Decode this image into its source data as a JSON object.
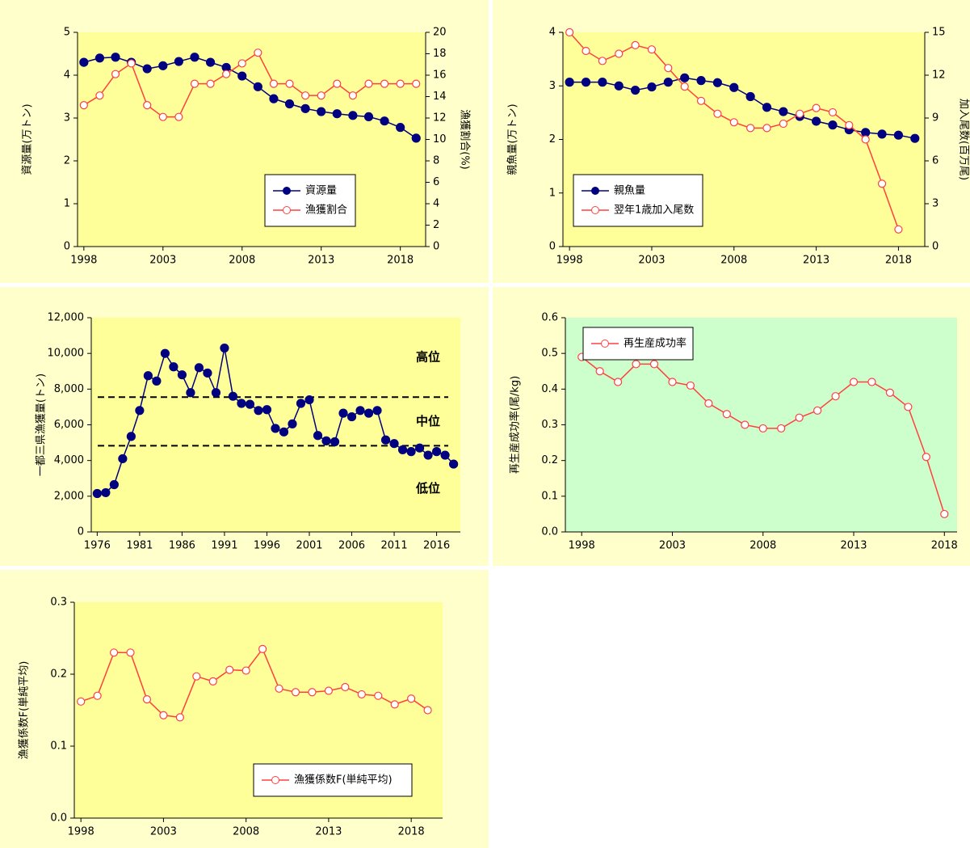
{
  "chart_data": [
    {
      "type": "line",
      "x": [
        1998,
        1999,
        2000,
        2001,
        2002,
        2003,
        2004,
        2005,
        2006,
        2007,
        2008,
        2009,
        2010,
        2011,
        2012,
        2013,
        2014,
        2015,
        2016,
        2017,
        2018,
        2019
      ],
      "xlim": [
        1997.6,
        2019.6
      ],
      "xticks": [
        1998,
        2003,
        2008,
        2013,
        2018
      ],
      "ylim": [
        0,
        5
      ],
      "yticks": [
        0,
        1,
        2,
        3,
        4,
        5
      ],
      "y2lim": [
        0,
        20
      ],
      "y2ticks": [
        0,
        2,
        4,
        6,
        8,
        10,
        12,
        14,
        16,
        18,
        20
      ],
      "ylabel": "資源量(万トン)",
      "y2label": "漁獲割合(%)",
      "legend": "center-right",
      "plot_color": "#ffff99",
      "series": [
        {
          "name": "資源量",
          "color": "#000080",
          "marker": "filled",
          "values": [
            4.3,
            4.4,
            4.42,
            4.3,
            4.15,
            4.22,
            4.32,
            4.42,
            4.3,
            4.18,
            3.98,
            3.73,
            3.45,
            3.33,
            3.22,
            3.15,
            3.1,
            3.06,
            3.03,
            2.93,
            2.78,
            2.53
          ]
        },
        {
          "name": "漁獲割合",
          "color": "#ff4040",
          "marker": "open",
          "axis": "y2",
          "values": [
            13.2,
            14.1,
            16.1,
            17.1,
            13.2,
            12.1,
            12.1,
            15.2,
            15.2,
            16.1,
            17.1,
            18.1,
            15.2,
            15.2,
            14.1,
            14.1,
            15.2,
            14.1,
            15.2,
            15.2,
            15.2,
            15.2
          ]
        }
      ]
    },
    {
      "type": "line",
      "x": [
        1998,
        1999,
        2000,
        2001,
        2002,
        2003,
        2004,
        2005,
        2006,
        2007,
        2008,
        2009,
        2010,
        2011,
        2012,
        2013,
        2014,
        2015,
        2016,
        2017,
        2018,
        2019
      ],
      "xlim": [
        1997.6,
        2019.6
      ],
      "xticks": [
        1998,
        2003,
        2008,
        2013,
        2018
      ],
      "ylim": [
        0,
        4
      ],
      "yticks": [
        0,
        1,
        2,
        3,
        4
      ],
      "y2lim": [
        0,
        15
      ],
      "y2ticks": [
        0,
        3,
        6,
        9,
        12,
        15
      ],
      "ylabel": "親魚量(万トン)",
      "y2label": "加入尾数(百万尾)",
      "legend": "lower-left",
      "plot_color": "#ffff99",
      "series": [
        {
          "name": "親魚量",
          "color": "#000080",
          "marker": "filled",
          "values": [
            3.07,
            3.07,
            3.07,
            3.0,
            2.92,
            2.98,
            3.07,
            3.15,
            3.1,
            3.06,
            2.97,
            2.8,
            2.6,
            2.52,
            2.43,
            2.34,
            2.27,
            2.18,
            2.13,
            2.1,
            2.08,
            2.02
          ]
        },
        {
          "name": "翌年1歳加入尾数",
          "color": "#ff4040",
          "marker": "open",
          "axis": "y2",
          "values": [
            15.0,
            13.7,
            13.0,
            13.5,
            14.1,
            13.8,
            12.5,
            11.2,
            10.2,
            9.3,
            8.7,
            8.3,
            8.3,
            8.6,
            9.3,
            9.7,
            9.4,
            8.5,
            7.5,
            4.4,
            1.2,
            null
          ]
        }
      ]
    },
    {
      "type": "line",
      "x": [
        1976,
        1977,
        1978,
        1979,
        1980,
        1981,
        1982,
        1983,
        1984,
        1985,
        1986,
        1987,
        1988,
        1989,
        1990,
        1991,
        1992,
        1993,
        1994,
        1995,
        1996,
        1997,
        1998,
        1999,
        2000,
        2001,
        2002,
        2003,
        2004,
        2005,
        2006,
        2007,
        2008,
        2009,
        2010,
        2011,
        2012,
        2013,
        2014,
        2015,
        2016,
        2017,
        2018
      ],
      "xlim": [
        1975.3,
        2018.8
      ],
      "xticks": [
        1976,
        1981,
        1986,
        1991,
        1996,
        2001,
        2006,
        2011,
        2016
      ],
      "ylim": [
        0,
        12000
      ],
      "yticks": [
        0,
        {
          "value": 2000,
          "label": "2,000"
        },
        {
          "value": 4000,
          "label": "4,000"
        },
        {
          "value": 6000,
          "label": "6,000"
        },
        {
          "value": 8000,
          "label": "8,000"
        },
        {
          "value": 10000,
          "label": "10,000"
        },
        {
          "value": 12000,
          "label": "12,000"
        }
      ],
      "ylabel": "一都三県漁獲量(トン)",
      "plot_color": "#ffff99",
      "hlines": [
        7550,
        4830
      ],
      "annotations": [
        "高位",
        "中位",
        "低位"
      ],
      "series": [
        {
          "color": "#000080",
          "marker": "filled",
          "values": [
            2150,
            2200,
            2650,
            4100,
            5350,
            6800,
            8750,
            8450,
            10000,
            9250,
            8800,
            7800,
            9200,
            8900,
            7800,
            10300,
            7600,
            7200,
            7150,
            6800,
            6850,
            5800,
            5600,
            6050,
            7200,
            7400,
            5400,
            5100,
            5050,
            6650,
            6450,
            6800,
            6650,
            6800,
            5150,
            4950,
            4600,
            4500,
            4700,
            4300,
            4500,
            4300,
            3800
          ]
        }
      ]
    },
    {
      "type": "line",
      "x": [
        1998,
        1999,
        2000,
        2001,
        2002,
        2003,
        2004,
        2005,
        2006,
        2007,
        2008,
        2009,
        2010,
        2011,
        2012,
        2013,
        2014,
        2015,
        2016,
        2017,
        2018
      ],
      "xlim": [
        1997.1,
        2018.7
      ],
      "xticks": [
        1998,
        2003,
        2008,
        2013,
        2018
      ],
      "ylim": [
        0,
        0.6
      ],
      "yticks": [
        {
          "value": 0,
          "label": "0.0"
        },
        0.1,
        0.2,
        0.3,
        0.4,
        0.5,
        0.6
      ],
      "ylabel": "再生産成功率(尾/kg)",
      "legend": "upper-left",
      "plot_color": "#ccffcc",
      "series": [
        {
          "name": "再生産成功率",
          "color": "#ff4040",
          "marker": "open",
          "values": [
            0.49,
            0.45,
            0.42,
            0.47,
            0.47,
            0.42,
            0.41,
            0.36,
            0.33,
            0.3,
            0.29,
            0.29,
            0.32,
            0.34,
            0.38,
            0.42,
            0.42,
            0.39,
            0.35,
            0.21,
            0.05
          ]
        }
      ]
    },
    {
      "type": "line",
      "x": [
        1998,
        1999,
        2000,
        2001,
        2002,
        2003,
        2004,
        2005,
        2006,
        2007,
        2008,
        2009,
        2010,
        2011,
        2012,
        2013,
        2014,
        2015,
        2016,
        2017,
        2018,
        2019
      ],
      "xlim": [
        1997.6,
        2019.9
      ],
      "xticks": [
        1998,
        2003,
        2008,
        2013,
        2018
      ],
      "ylim": [
        0,
        0.3
      ],
      "yticks": [
        {
          "value": 0,
          "label": "0.0"
        },
        0.1,
        0.2,
        0.3
      ],
      "ylabel": "漁獲係数F(単純平均)",
      "legend": "lower-right",
      "plot_color": "#ffff99",
      "series": [
        {
          "name": "漁獲係数F(単純平均)",
          "color": "#ff4040",
          "marker": "open",
          "values": [
            0.162,
            0.17,
            0.23,
            0.23,
            0.165,
            0.143,
            0.14,
            0.197,
            0.19,
            0.206,
            0.205,
            0.235,
            0.18,
            0.175,
            0.175,
            0.177,
            0.182,
            0.172,
            0.17,
            0.158,
            0.166,
            0.15
          ]
        }
      ]
    }
  ]
}
